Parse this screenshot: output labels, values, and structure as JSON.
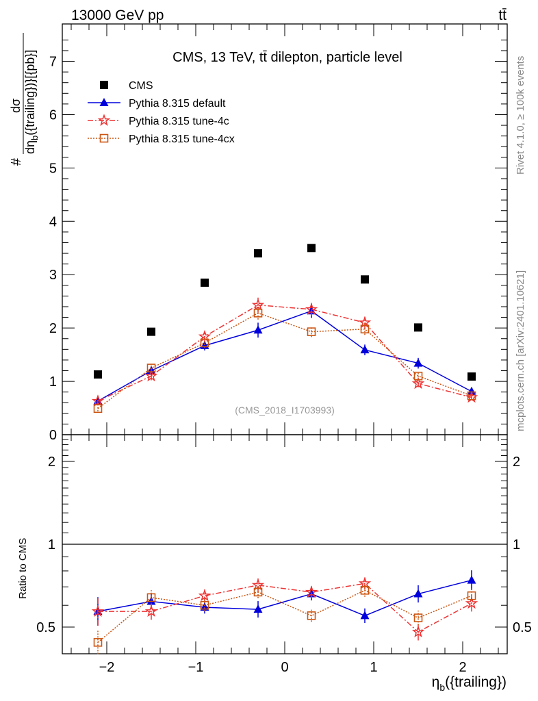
{
  "header": {
    "left": "13000 GeV pp",
    "right": "tt̄"
  },
  "side_labels": {
    "rivet": "Rivet 4.1.0, ≥ 100k events",
    "mcplots": "mcplots.cern.ch [arXiv:2401.10621]"
  },
  "watermark": "(CMS_2018_I1703993)",
  "chart_data": [
    {
      "type": "scatter",
      "title": "CMS, 13 TeV, t̄t dilepton, particle level",
      "title_display": "CMS, 13 TeV, tt̄ dilepton, particle level",
      "ylabel": "#dσ/dη_b({trailing})}[{pb}]",
      "ylabel_parts": {
        "hash": "#",
        "num": "dσ",
        "den": "dη",
        "den_sub": "b",
        "den_rest": "({trailing})}[{pb}]"
      },
      "xlabel": "η_b({trailing})",
      "xlabel_parts": {
        "eta": "η",
        "sub": "b",
        "rest": "({trailing})"
      },
      "xlim": [
        -2.5,
        2.5
      ],
      "ylim": [
        0,
        7.7
      ],
      "yticks": [
        "0",
        "1",
        "2",
        "3",
        "4",
        "5",
        "6",
        "7"
      ],
      "xticks": [
        "−2",
        "−1",
        "0",
        "1",
        "2"
      ],
      "legend_position": "top-left",
      "x": [
        -2.1,
        -1.5,
        -0.9,
        -0.3,
        0.3,
        0.9,
        1.5,
        2.1
      ],
      "series": [
        {
          "name": "CMS",
          "color": "#000000",
          "marker": "square",
          "line": "none",
          "values": [
            1.13,
            1.93,
            2.85,
            3.4,
            3.5,
            2.91,
            2.01,
            1.09
          ],
          "err": [
            0,
            0,
            0,
            0,
            0,
            0,
            0,
            0
          ]
        },
        {
          "name": "Pythia 8.315 default",
          "color": "#0000dd",
          "marker": "triangle",
          "line": "solid",
          "values": [
            0.63,
            1.2,
            1.67,
            1.96,
            2.32,
            1.59,
            1.34,
            0.81
          ],
          "err": [
            0.08,
            0.08,
            0.09,
            0.14,
            0.13,
            0.1,
            0.1,
            0.07
          ]
        },
        {
          "name": "Pythia 8.315 tune-4c",
          "color": "#ee3333",
          "marker": "star",
          "line": "dashdot",
          "values": [
            0.63,
            1.1,
            1.84,
            2.43,
            2.35,
            2.1,
            0.96,
            0.7
          ],
          "err": [
            0.08,
            0.08,
            0.1,
            0.14,
            0.12,
            0.11,
            0.07,
            0.05
          ]
        },
        {
          "name": "Pythia 8.315 tune-4cx",
          "color": "#cc5511",
          "marker": "open-square",
          "line": "dotted",
          "values": [
            0.49,
            1.25,
            1.72,
            2.28,
            1.93,
            1.98,
            1.1,
            0.73
          ],
          "err": [
            0.05,
            0.08,
            0.09,
            0.12,
            0.1,
            0.11,
            0.07,
            0.05
          ]
        }
      ]
    },
    {
      "type": "scatter",
      "ylabel": "Ratio to CMS",
      "yscale": "log",
      "ylim": [
        0.4,
        2.5
      ],
      "yticks": [
        "0.5",
        "1",
        "2"
      ],
      "ytick_values": [
        0.5,
        1,
        2
      ],
      "reference_line": 1,
      "x": [
        -2.1,
        -1.5,
        -0.9,
        -0.3,
        0.3,
        0.9,
        1.5,
        2.1
      ],
      "series": [
        {
          "name": "Pythia 8.315 default",
          "values": [
            0.57,
            0.62,
            0.59,
            0.58,
            0.66,
            0.55,
            0.66,
            0.74
          ]
        },
        {
          "name": "Pythia 8.315 tune-4c",
          "values": [
            0.57,
            0.57,
            0.65,
            0.71,
            0.67,
            0.72,
            0.48,
            0.61
          ]
        },
        {
          "name": "Pythia 8.315 tune-4cx",
          "values": [
            0.44,
            0.64,
            0.6,
            0.67,
            0.55,
            0.68,
            0.54,
            0.65
          ]
        }
      ]
    }
  ]
}
